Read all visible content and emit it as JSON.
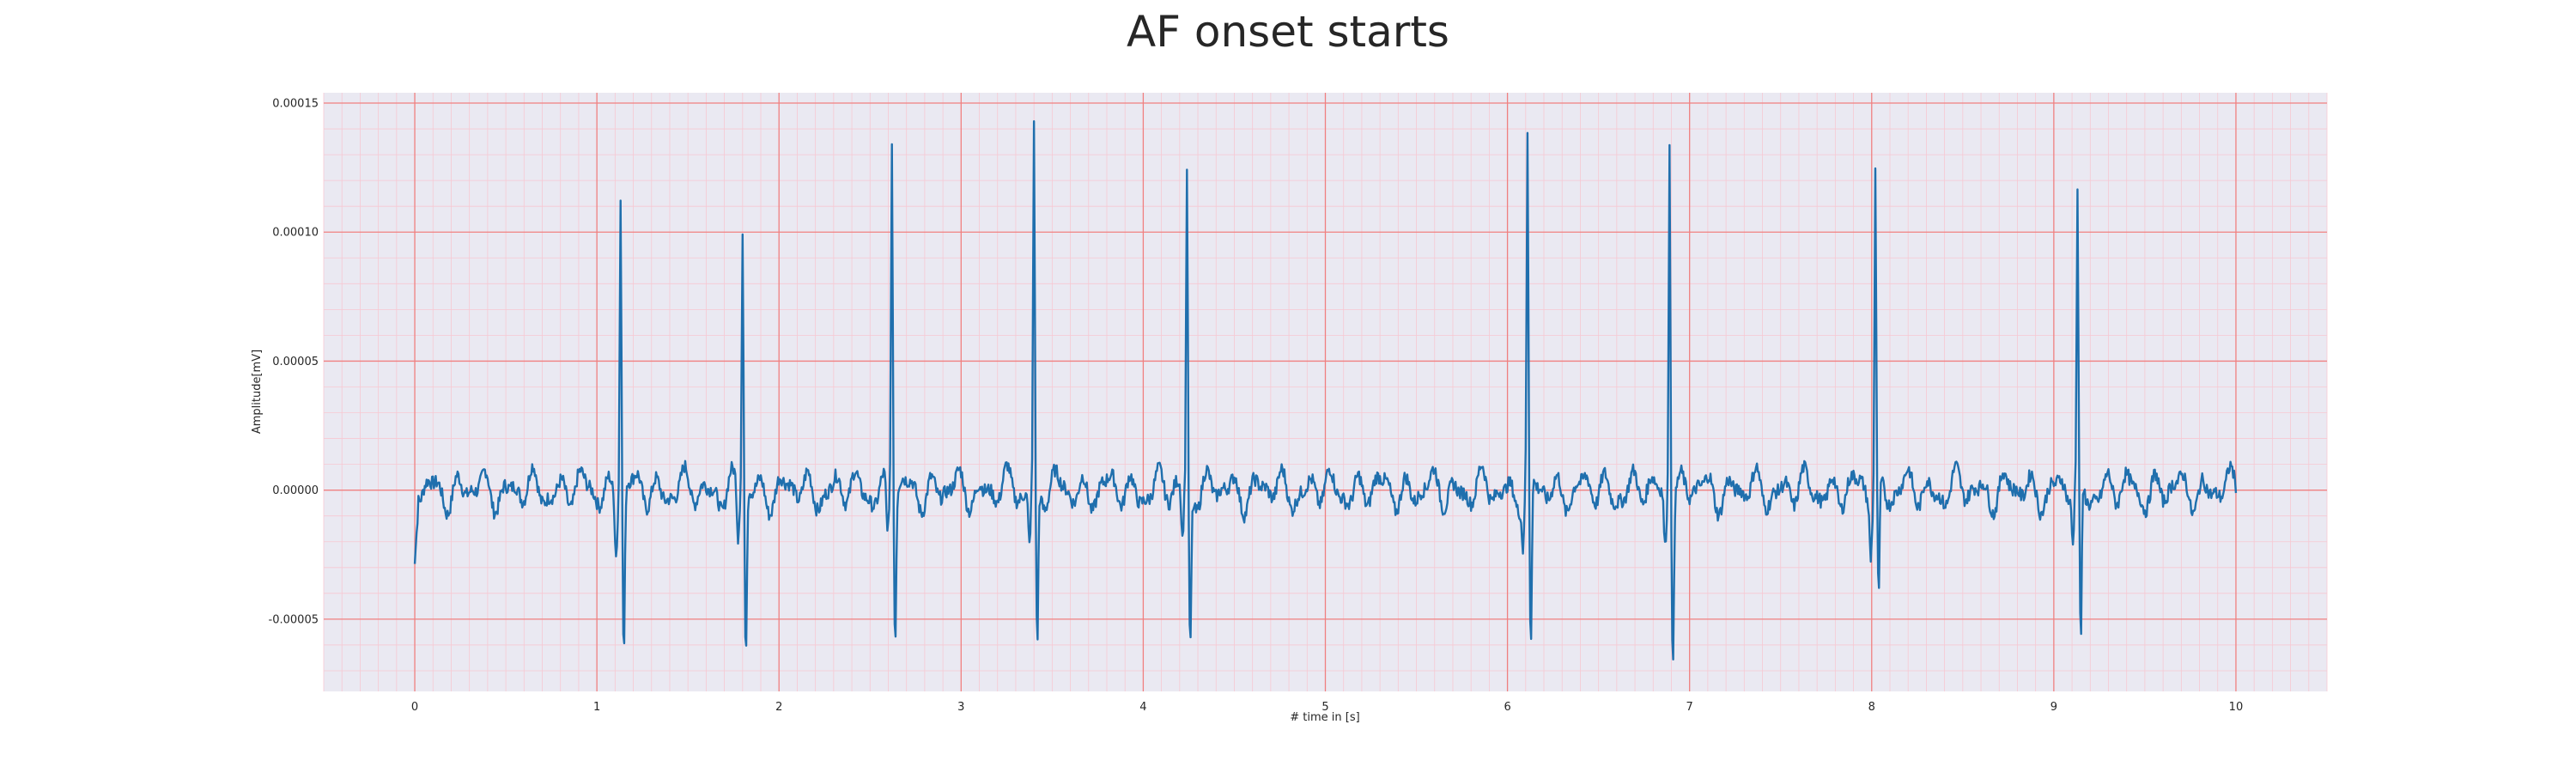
{
  "chart_data": {
    "type": "line",
    "title": "AF onset starts",
    "xlabel": "# time in [s]",
    "ylabel": "Amplitude[mV]",
    "xlim": [
      -0.5,
      10.5
    ],
    "ylim": [
      -7.8e-05,
      0.000154
    ],
    "x_ticks": [
      0,
      1,
      2,
      3,
      4,
      5,
      6,
      7,
      8,
      9,
      10
    ],
    "x_tick_labels": [
      "0",
      "1",
      "2",
      "3",
      "4",
      "5",
      "6",
      "7",
      "8",
      "9",
      "10"
    ],
    "y_ticks": [
      -5e-05,
      0.0,
      5e-05,
      0.0001,
      0.00015
    ],
    "y_tick_labels": [
      "-0.00005",
      "0.00000",
      "0.00005",
      "0.00010",
      "0.00015"
    ],
    "grid": true,
    "minor_grid": true,
    "background_color": "#eae9f2",
    "major_grid_color": "#f08080",
    "minor_grid_color": "#f7c8d2",
    "series": [
      {
        "color": "#1f6fad",
        "x_start": 0.0,
        "x_end": 10.0,
        "sample_count": 2001,
        "baseline_oscillations_per_second": 7.3,
        "baseline_amplitude": 9e-06,
        "beats": [
          {
            "t": 1.13,
            "peak": 0.00012,
            "trough": -6.4e-05
          },
          {
            "t": 1.8,
            "peak": 0.000101,
            "trough": -6.3e-05
          },
          {
            "t": 2.62,
            "peak": 0.000141,
            "trough": -5.5e-05
          },
          {
            "t": 3.4,
            "peak": 0.000141,
            "trough": -6.3e-05
          },
          {
            "t": 4.24,
            "peak": 0.000126,
            "trough": -6.1e-05
          },
          {
            "t": 6.11,
            "peak": 0.000131,
            "trough": -6.7e-05
          },
          {
            "t": 6.89,
            "peak": 0.000144,
            "trough": -6.2e-05
          },
          {
            "t": 8.02,
            "peak": 0.000126,
            "trough": -4.5e-05
          },
          {
            "t": 9.13,
            "peak": 0.000109,
            "trough": -6.4e-05
          }
        ]
      }
    ]
  }
}
